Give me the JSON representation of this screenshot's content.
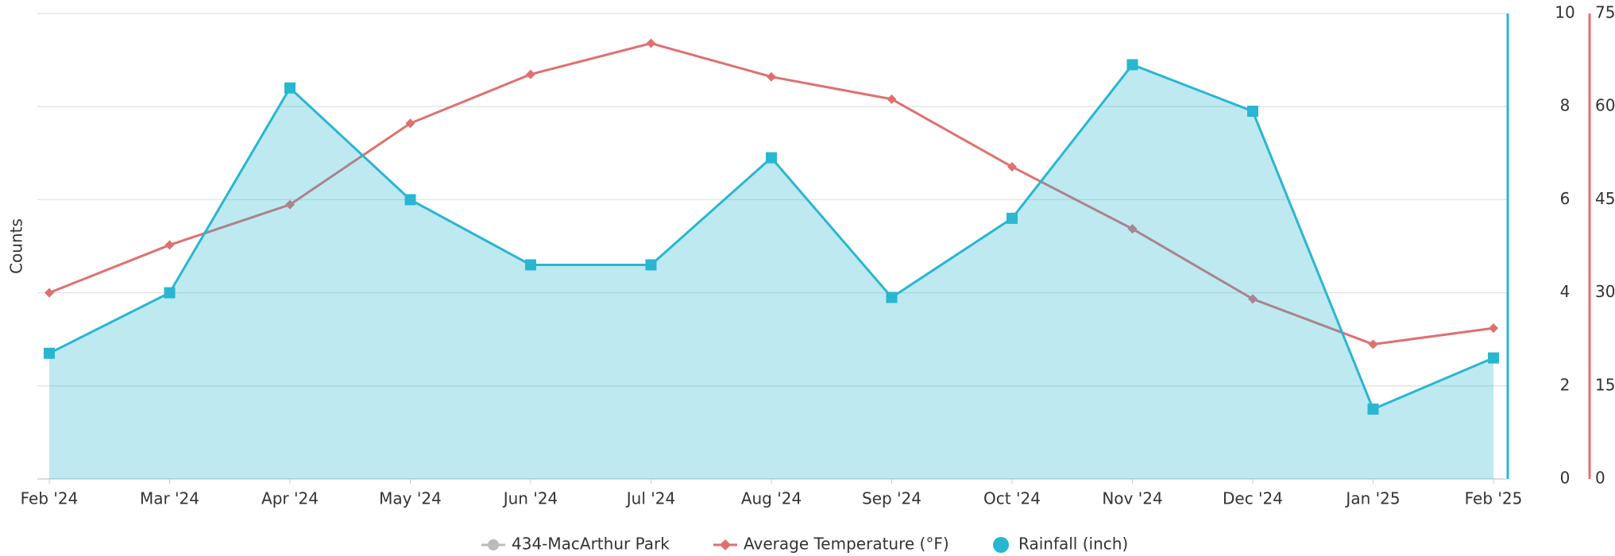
{
  "chart_data": {
    "type": "line",
    "y_label": "Counts",
    "categories": [
      "Feb '24",
      "Mar '24",
      "Apr '24",
      "May '24",
      "Jun '24",
      "Jul '24",
      "Aug '24",
      "Sep '24",
      "Oct '24",
      "Nov '24",
      "Dec '24",
      "Jan '25",
      "Feb '25"
    ],
    "series": [
      {
        "name": "434-MacArthur Park",
        "color": "#bbbbbb",
        "values": [
          null,
          null,
          null,
          null,
          null,
          null,
          null,
          null,
          null,
          null,
          null,
          null,
          null
        ]
      },
      {
        "name": "Average Temperature (°F)",
        "color": "#e07070",
        "axis": "y3",
        "values": [
          30,
          37.7,
          44.2,
          57.3,
          65.2,
          70.2,
          64.8,
          61.2,
          50.3,
          40.3,
          29,
          21.7,
          24.3
        ]
      },
      {
        "name": "Rainfall (inch)",
        "color": "#29b6d1",
        "axis": "y2",
        "area": true,
        "values": [
          2.7,
          4.0,
          8.4,
          6.0,
          4.6,
          4.6,
          6.9,
          3.9,
          5.6,
          8.9,
          7.9,
          1.5,
          2.6
        ]
      }
    ],
    "y2lim": [
      0,
      10
    ],
    "y2ticks": [
      0,
      2,
      4,
      6,
      8,
      10
    ],
    "y3lim": [
      0,
      75
    ],
    "y3ticks": [
      0,
      15,
      30,
      45,
      60,
      75
    ],
    "grid": true,
    "legend": "bottom"
  }
}
